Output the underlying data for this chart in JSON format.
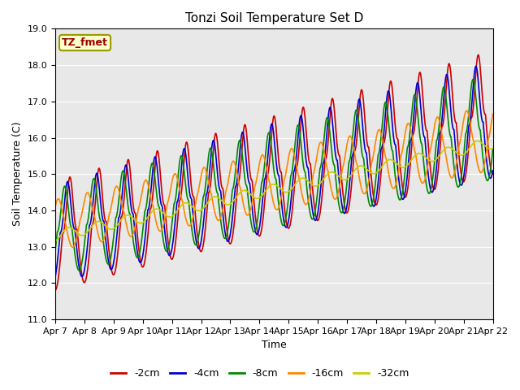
{
  "title": "Tonzi Soil Temperature Set D",
  "ylabel": "Soil Temperature (C)",
  "xlabel": "Time",
  "legend_label": "TZ_fmet",
  "series_labels": [
    "-2cm",
    "-4cm",
    "-8cm",
    "-16cm",
    "-32cm"
  ],
  "series_colors": [
    "#cc0000",
    "#0000cc",
    "#008800",
    "#ff8800",
    "#cccc00"
  ],
  "series_linewidths": [
    1.2,
    1.2,
    1.2,
    1.2,
    1.2
  ],
  "ylim": [
    11.0,
    19.0
  ],
  "yticks": [
    11.0,
    12.0,
    13.0,
    14.0,
    15.0,
    16.0,
    17.0,
    18.0,
    19.0
  ],
  "xtick_labels": [
    "Apr 7",
    "Apr 8",
    "Apr 9",
    "Apr 10",
    "Apr 11",
    "Apr 12",
    "Apr 13",
    "Apr 14",
    "Apr 15",
    "Apr 16",
    "Apr 17",
    "Apr 18",
    "Apr 19",
    "Apr 20",
    "Apr 21",
    "Apr 22"
  ],
  "bg_color": "#e8e8e8",
  "plot_bg_color": "#e8e8e8",
  "title_fontsize": 11,
  "axis_label_fontsize": 9,
  "tick_fontsize": 8,
  "legend_fontsize": 9
}
